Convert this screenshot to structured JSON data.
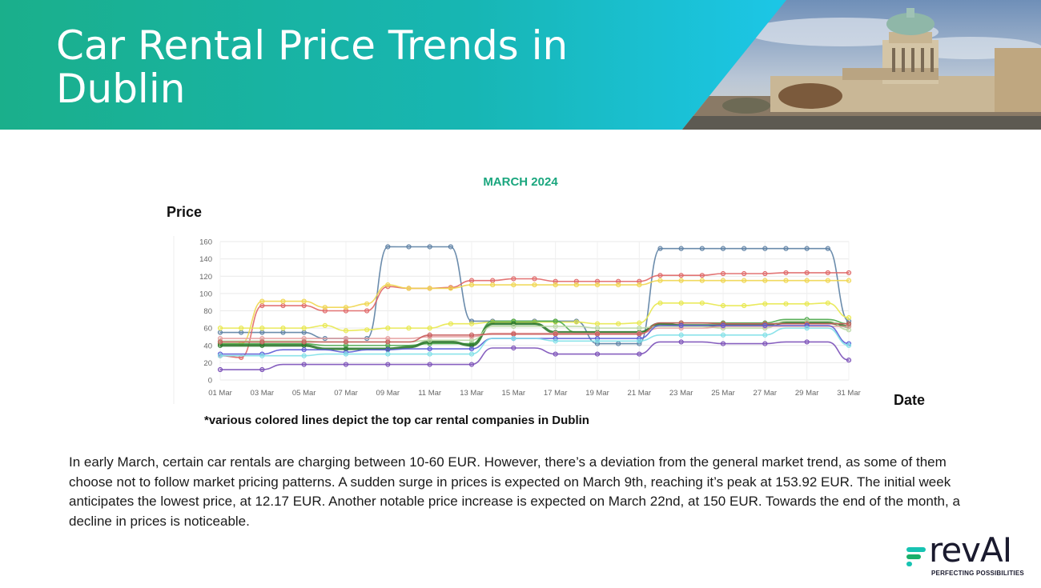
{
  "header": {
    "title": "Car Rental Price Trends in Dublin",
    "photo_icon": "dublin-four-courts-photo"
  },
  "chart_data": {
    "type": "line",
    "title": "MARCH 2024",
    "ylabel": "Price",
    "xlabel": "Date",
    "ylim": [
      0,
      160
    ],
    "yticks": [
      0,
      20,
      40,
      60,
      80,
      100,
      120,
      140,
      160
    ],
    "grid": true,
    "x": [
      "01 Mar",
      "02 Mar",
      "03 Mar",
      "04 Mar",
      "05 Mar",
      "06 Mar",
      "07 Mar",
      "08 Mar",
      "09 Mar",
      "10 Mar",
      "11 Mar",
      "12 Mar",
      "13 Mar",
      "14 Mar",
      "15 Mar",
      "16 Mar",
      "17 Mar",
      "18 Mar",
      "19 Mar",
      "20 Mar",
      "21 Mar",
      "22 Mar",
      "23 Mar",
      "24 Mar",
      "25 Mar",
      "26 Mar",
      "27 Mar",
      "28 Mar",
      "29 Mar",
      "30 Mar",
      "31 Mar"
    ],
    "xtick_labels": [
      "01 Mar",
      "03 Mar",
      "05 Mar",
      "07 Mar",
      "09 Mar",
      "11 Mar",
      "13 Mar",
      "15 Mar",
      "17 Mar",
      "19 Mar",
      "21 Mar",
      "23 Mar",
      "25 Mar",
      "27 Mar",
      "29 Mar",
      "31 Mar"
    ],
    "series": [
      {
        "color": "#5b7fa3",
        "values": [
          55,
          55,
          55,
          55,
          55,
          48,
          48,
          48,
          154,
          154,
          154,
          154,
          68,
          68,
          68,
          68,
          68,
          68,
          42,
          42,
          42,
          152,
          152,
          152,
          152,
          152,
          152,
          152,
          152,
          152,
          68
        ]
      },
      {
        "color": "#e06666",
        "values": [
          28,
          26,
          86,
          86,
          86,
          80,
          80,
          80,
          108,
          106,
          106,
          107,
          115,
          115,
          117,
          117,
          114,
          114,
          114,
          114,
          114,
          121,
          121,
          121,
          123,
          123,
          123,
          124,
          124,
          124,
          124
        ]
      },
      {
        "color": "#f0d64f",
        "values": [
          42,
          42,
          91,
          91,
          91,
          84,
          84,
          88,
          110,
          106,
          106,
          106,
          110,
          110,
          110,
          110,
          110,
          110,
          110,
          110,
          110,
          115,
          115,
          115,
          115,
          115,
          115,
          115,
          115,
          115,
          115
        ]
      },
      {
        "color": "#e8e84c",
        "values": [
          60,
          60,
          60,
          60,
          60,
          63,
          57,
          58,
          60,
          60,
          60,
          65,
          65,
          67,
          67,
          67,
          67,
          67,
          65,
          65,
          66,
          89,
          89,
          89,
          86,
          86,
          88,
          88,
          88,
          89,
          72
        ]
      },
      {
        "color": "#4aa84a",
        "values": [
          42,
          42,
          42,
          42,
          42,
          40,
          40,
          40,
          40,
          40,
          42,
          42,
          42,
          68,
          68,
          68,
          68,
          55,
          55,
          55,
          55,
          66,
          66,
          66,
          66,
          66,
          66,
          70,
          70,
          70,
          65
        ]
      },
      {
        "color": "#2f7a2f",
        "values": [
          40,
          40,
          40,
          40,
          40,
          36,
          36,
          36,
          36,
          38,
          44,
          44,
          40,
          65,
          65,
          65,
          55,
          55,
          55,
          55,
          55,
          65,
          63,
          63,
          63,
          63,
          63,
          66,
          66,
          66,
          62
        ]
      },
      {
        "color": "#b9d7a3",
        "values": [
          45,
          45,
          45,
          45,
          45,
          44,
          44,
          44,
          44,
          44,
          46,
          46,
          46,
          62,
          62,
          62,
          62,
          62,
          60,
          60,
          60,
          62,
          62,
          62,
          60,
          60,
          60,
          68,
          68,
          68,
          58
        ]
      },
      {
        "color": "#e6a0a0",
        "values": [
          48,
          48,
          48,
          48,
          48,
          48,
          48,
          48,
          48,
          48,
          50,
          50,
          50,
          54,
          54,
          54,
          54,
          54,
          54,
          54,
          54,
          60,
          60,
          60,
          62,
          62,
          62,
          62,
          62,
          62,
          62
        ]
      },
      {
        "color": "#c85a5a",
        "values": [
          44,
          44,
          44,
          44,
          44,
          44,
          44,
          44,
          44,
          44,
          52,
          52,
          52,
          53,
          53,
          53,
          53,
          53,
          53,
          53,
          53,
          66,
          66,
          66,
          65,
          65,
          65,
          65,
          65,
          65,
          65
        ]
      },
      {
        "color": "#5b5bd6",
        "values": [
          30,
          30,
          30,
          35,
          35,
          35,
          32,
          35,
          35,
          36,
          36,
          36,
          36,
          48,
          48,
          48,
          48,
          48,
          48,
          48,
          48,
          63,
          63,
          63,
          63,
          63,
          63,
          63,
          63,
          63,
          42
        ]
      },
      {
        "color": "#7fe0e8",
        "values": [
          28,
          28,
          28,
          28,
          28,
          30,
          30,
          30,
          30,
          30,
          30,
          30,
          30,
          48,
          48,
          48,
          45,
          45,
          45,
          45,
          45,
          52,
          52,
          52,
          52,
          52,
          52,
          60,
          60,
          60,
          40
        ]
      },
      {
        "color": "#7a4fb8",
        "values": [
          12,
          12,
          12,
          18,
          18,
          18,
          18,
          18,
          18,
          18,
          18,
          18,
          18,
          37,
          37,
          37,
          30,
          30,
          30,
          30,
          30,
          44,
          44,
          44,
          42,
          42,
          42,
          44,
          44,
          44,
          23
        ]
      }
    ],
    "footnote": "*various colored lines depict the top car rental companies in Dublin"
  },
  "description": "In early March, certain car rentals are charging between 10-60 EUR. However, there’s a deviation from the general market trend, as some of them choose not to follow market pricing patterns. A sudden surge in prices is expected on March 9th, reaching it’s peak at 153.92 EUR. The initial week anticipates the lowest price, at 12.17 EUR. Another notable price increase is expected on March 22nd, at 150 EUR. Towards the end of the month, a decline in prices is noticeable.",
  "logo": {
    "word": "revAI",
    "tagline": "PERFECTING POSSIBILITIES",
    "icon": "reval-logo-icon",
    "colors": {
      "teal": "#17c3b2",
      "green": "#1aaf6a",
      "dark": "#1a1a2e"
    }
  }
}
